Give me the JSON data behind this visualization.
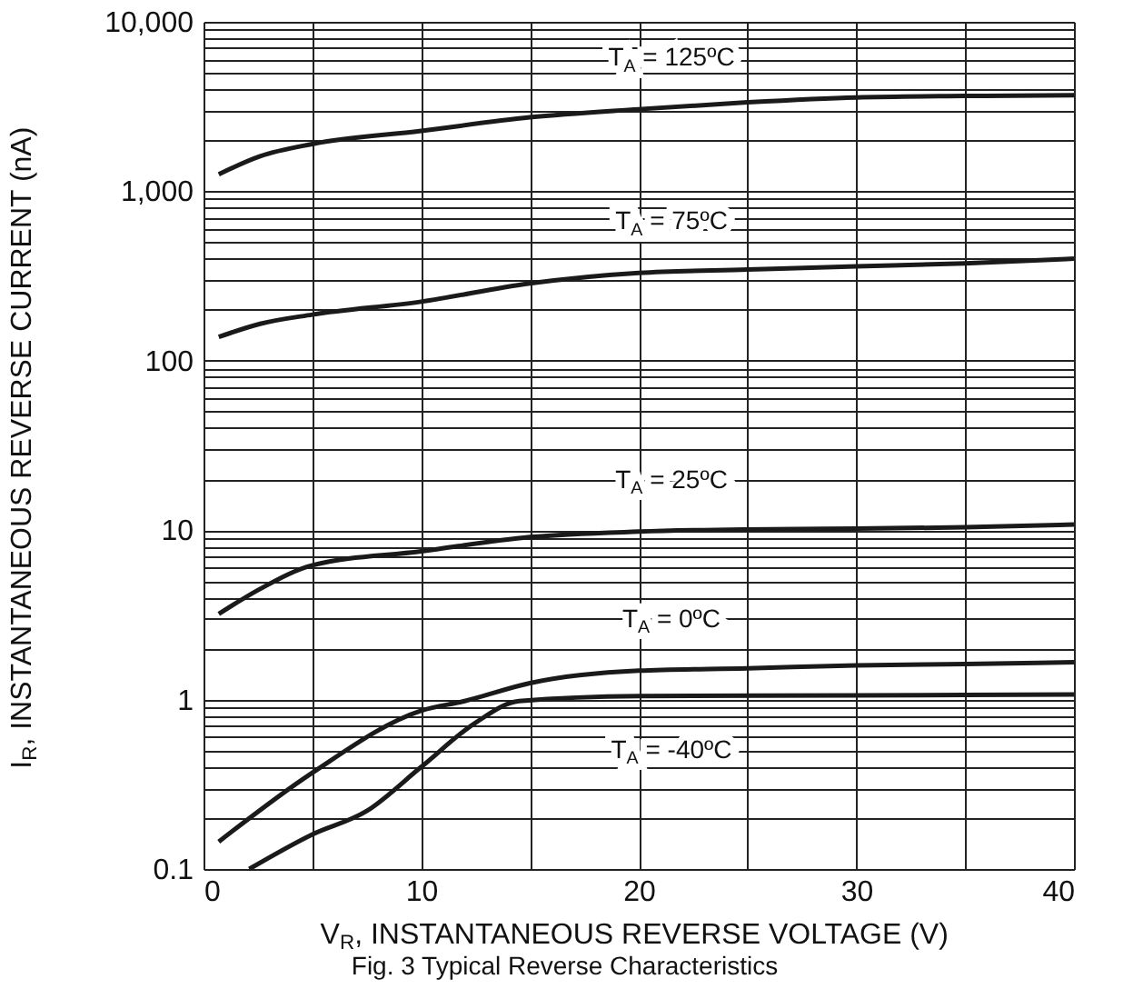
{
  "chart_data": {
    "type": "line",
    "xlabel": "V$_{R}$, INSTANTANEOUS REVERSE VOLTAGE (V)",
    "ylabel": "I$_{R}$, INSTANTANEOUS REVERSE CURRENT (nA)",
    "log": "y",
    "grid": true,
    "marker": "none",
    "line_style": "solid",
    "xlim": [
      0,
      40
    ],
    "xticks": [
      0,
      {
        "value": 5,
        "label": null
      },
      10,
      {
        "value": 15,
        "label": null
      },
      20,
      {
        "value": 25,
        "label": null
      },
      30,
      {
        "value": 35,
        "label": null
      },
      40
    ],
    "ylim": [
      0.1,
      10000
    ],
    "yticks": [
      {
        "value": 0.1,
        "label": "0.1"
      },
      {
        "value": 0.2,
        "label": null
      },
      {
        "value": 0.3,
        "label": null
      },
      {
        "value": 0.4,
        "label": null
      },
      {
        "value": 0.5,
        "label": null
      },
      {
        "value": 0.6,
        "label": null
      },
      {
        "value": 0.7,
        "label": null
      },
      {
        "value": 0.8,
        "label": null
      },
      {
        "value": 0.9,
        "label": null
      },
      {
        "value": 1,
        "label": "1"
      },
      {
        "value": 2,
        "label": null
      },
      {
        "value": 3,
        "label": null
      },
      {
        "value": 4,
        "label": null
      },
      {
        "value": 5,
        "label": null
      },
      {
        "value": 6,
        "label": null
      },
      {
        "value": 7,
        "label": null
      },
      {
        "value": 8,
        "label": null
      },
      {
        "value": 9,
        "label": null
      },
      {
        "value": 10,
        "label": "10"
      },
      {
        "value": 20,
        "label": null
      },
      {
        "value": 30,
        "label": null
      },
      {
        "value": 40,
        "label": null
      },
      {
        "value": 50,
        "label": null
      },
      {
        "value": 60,
        "label": null
      },
      {
        "value": 70,
        "label": null
      },
      {
        "value": 80,
        "label": null
      },
      {
        "value": 90,
        "label": null
      },
      {
        "value": 100,
        "label": "100"
      },
      {
        "value": 200,
        "label": null
      },
      {
        "value": 300,
        "label": null
      },
      {
        "value": 400,
        "label": null
      },
      {
        "value": 500,
        "label": null
      },
      {
        "value": 600,
        "label": null
      },
      {
        "value": 700,
        "label": null
      },
      {
        "value": 800,
        "label": null
      },
      {
        "value": 900,
        "label": null
      },
      {
        "value": 1000,
        "label": "1,000"
      },
      {
        "value": 2000,
        "label": null
      },
      {
        "value": 3000,
        "label": null
      },
      {
        "value": 4000,
        "label": null
      },
      {
        "value": 5000,
        "label": null
      },
      {
        "value": 6000,
        "label": null
      },
      {
        "value": 7000,
        "label": null
      },
      {
        "value": 8000,
        "label": null
      },
      {
        "value": 9000,
        "label": null
      },
      {
        "value": 10000,
        "label": "10,000"
      }
    ],
    "series": [
      {
        "color": "#1a1a1a",
        "x": [
          0.7,
          2.6,
          5,
          10,
          15,
          20,
          25,
          30,
          35,
          40
        ],
        "values": [
          1260,
          1610,
          1900,
          2270,
          2730,
          3050,
          3350,
          3580,
          3650,
          3690
        ]
      },
      {
        "color": "#1a1a1a",
        "x": [
          0.7,
          2.6,
          5,
          10,
          15,
          20,
          25,
          30,
          35,
          40
        ],
        "values": [
          138,
          165,
          187,
          223,
          286,
          330,
          345,
          360,
          375,
          400
        ]
      },
      {
        "color": "#1a1a1a",
        "x": [
          0.7,
          2.6,
          5,
          10,
          15,
          20,
          25,
          30,
          35,
          40
        ],
        "values": [
          3.2,
          4.5,
          6.2,
          7.5,
          9.1,
          9.8,
          10.1,
          10.2,
          10.4,
          10.8
        ]
      },
      {
        "color": "#1a1a1a",
        "x": [
          0.7,
          5,
          10,
          12,
          15,
          20,
          25,
          30,
          35,
          40
        ],
        "values": [
          0.145,
          0.37,
          0.86,
          0.98,
          1.25,
          1.48,
          1.53,
          1.59,
          1.62,
          1.66
        ]
      },
      {
        "color": "#1a1a1a",
        "x": [
          2.1,
          5,
          7.5,
          10,
          12.5,
          14.5,
          20,
          30,
          40
        ],
        "values": [
          0.1,
          0.16,
          0.22,
          0.4,
          0.73,
          0.98,
          1.05,
          1.06,
          1.07
        ]
      }
    ],
    "annotations": [
      "T$_{A}$ = 125ºC",
      "T$_{A}$ = 75ºC",
      "T$_{A}$ = 25ºC",
      "T$_{A}$ = 0ºC",
      "T$_{A}$ = -40ºC",
      "Fig. 3  Typical Reverse Characteristics"
    ]
  }
}
